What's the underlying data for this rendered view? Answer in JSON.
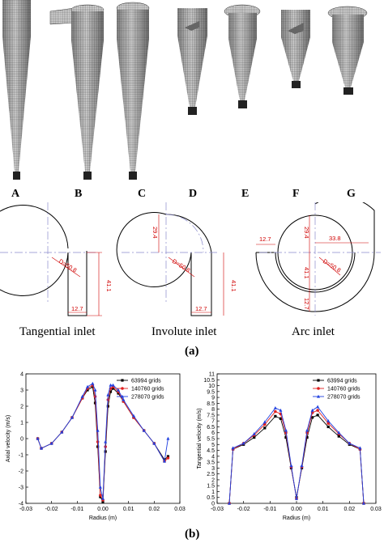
{
  "model_labels": [
    "A",
    "B",
    "C",
    "D",
    "E",
    "F",
    "G"
  ],
  "inlet_captions": [
    "Tangential inlet",
    "Involute inlet",
    "Arc inlet"
  ],
  "dimensions": {
    "d1": "D=50.8",
    "h1": "41.1",
    "w1": "12.7",
    "r2": "29.4",
    "d2": "D=50.8",
    "h2": "41.1",
    "w2": "12.7",
    "a3": "12.7",
    "r3": "29.4",
    "c3": "33.8",
    "d3": "D=50.8",
    "h3": "41.1",
    "w3": "12.7"
  },
  "part_a": "(a)",
  "part_b": "(b)",
  "chart_data": [
    {
      "type": "line",
      "xlabel": "Radius (m)",
      "ylabel": "Axial velocity (m/s)",
      "xlim": [
        -0.03,
        0.03
      ],
      "ylim": [
        -4,
        4
      ],
      "xticks": [
        "-0.03",
        "-0.02",
        "-0.01",
        "0.00",
        "0.01",
        "0.02",
        "0.03"
      ],
      "yticks": [
        "-4",
        "-3",
        "-2",
        "-1",
        "0",
        "1",
        "2",
        "3",
        "4"
      ],
      "legend": "top-right",
      "x": [
        -0.0254,
        -0.024,
        -0.02,
        -0.016,
        -0.012,
        -0.008,
        -0.006,
        -0.004,
        -0.003,
        -0.002,
        -0.001,
        0,
        0.001,
        0.002,
        0.003,
        0.004,
        0.006,
        0.008,
        0.012,
        0.016,
        0.02,
        0.024,
        0.0254
      ],
      "series": [
        {
          "name": "63994 grids",
          "color": "#000000",
          "marker": "square",
          "values": [
            0,
            -0.6,
            -0.3,
            0.4,
            1.3,
            2.5,
            3.0,
            3.2,
            2.2,
            -0.5,
            -3.6,
            -3.9,
            -0.8,
            2.0,
            2.9,
            3.1,
            2.8,
            2.3,
            1.3,
            0.5,
            -0.3,
            -1.3,
            -1.1
          ]
        },
        {
          "name": "140760 grids",
          "color": "#e02020",
          "marker": "circle",
          "values": [
            0,
            -0.6,
            -0.3,
            0.4,
            1.3,
            2.5,
            3.1,
            3.3,
            2.6,
            -0.2,
            -3.5,
            -3.8,
            -0.5,
            2.4,
            3.1,
            3.2,
            2.9,
            2.3,
            1.3,
            0.5,
            -0.3,
            -1.4,
            -1.2
          ]
        },
        {
          "name": "278070 grids",
          "color": "#2040e0",
          "marker": "triangle",
          "values": [
            0,
            -0.6,
            -0.3,
            0.4,
            1.3,
            2.6,
            3.2,
            3.4,
            3.0,
            0.5,
            -3.0,
            -3.7,
            -0.2,
            2.7,
            3.3,
            3.3,
            3.0,
            2.4,
            1.4,
            0.5,
            -0.3,
            -1.4,
            0
          ]
        }
      ]
    },
    {
      "type": "line",
      "xlabel": "Radius (m)",
      "ylabel": "Tangential velocity (m/s)",
      "xlim": [
        -0.03,
        0.03
      ],
      "ylim": [
        0,
        11
      ],
      "xticks": [
        "-0.03",
        "-0.02",
        "-0.01",
        "0.00",
        "0.01",
        "0.02",
        "0.03"
      ],
      "yticks": [
        "0",
        "0.5",
        "1",
        "1.5",
        "2",
        "2.5",
        "3",
        "3.5",
        "4",
        "4.5",
        "5",
        "5.5",
        "6",
        "6.5",
        "7",
        "7.5",
        "8",
        "8.5",
        "9",
        "9.5",
        "10",
        "10.5",
        "11"
      ],
      "legend": "top-right",
      "x": [
        -0.0254,
        -0.024,
        -0.02,
        -0.016,
        -0.012,
        -0.008,
        -0.006,
        -0.004,
        -0.002,
        0,
        0.002,
        0.004,
        0.006,
        0.008,
        0.012,
        0.016,
        0.02,
        0.024,
        0.0254
      ],
      "series": [
        {
          "name": "63994 grids",
          "color": "#000000",
          "marker": "square",
          "values": [
            0,
            4.6,
            5.0,
            5.6,
            6.4,
            7.4,
            7.2,
            5.6,
            3.0,
            0.5,
            3.0,
            5.6,
            7.3,
            7.5,
            6.5,
            5.7,
            5.0,
            4.6,
            0
          ]
        },
        {
          "name": "140760 grids",
          "color": "#e02020",
          "marker": "circle",
          "values": [
            0,
            4.6,
            5.1,
            5.8,
            6.7,
            7.8,
            7.6,
            6.0,
            3.1,
            0.4,
            3.1,
            6.0,
            7.7,
            7.9,
            6.8,
            5.9,
            5.1,
            4.6,
            0
          ]
        },
        {
          "name": "278070 grids",
          "color": "#2040e0",
          "marker": "triangle",
          "values": [
            0,
            4.7,
            5.1,
            5.9,
            6.9,
            8.1,
            7.9,
            6.2,
            3.2,
            0.4,
            3.2,
            6.2,
            7.9,
            8.2,
            7.0,
            6.0,
            5.1,
            4.7,
            0
          ]
        }
      ]
    }
  ]
}
